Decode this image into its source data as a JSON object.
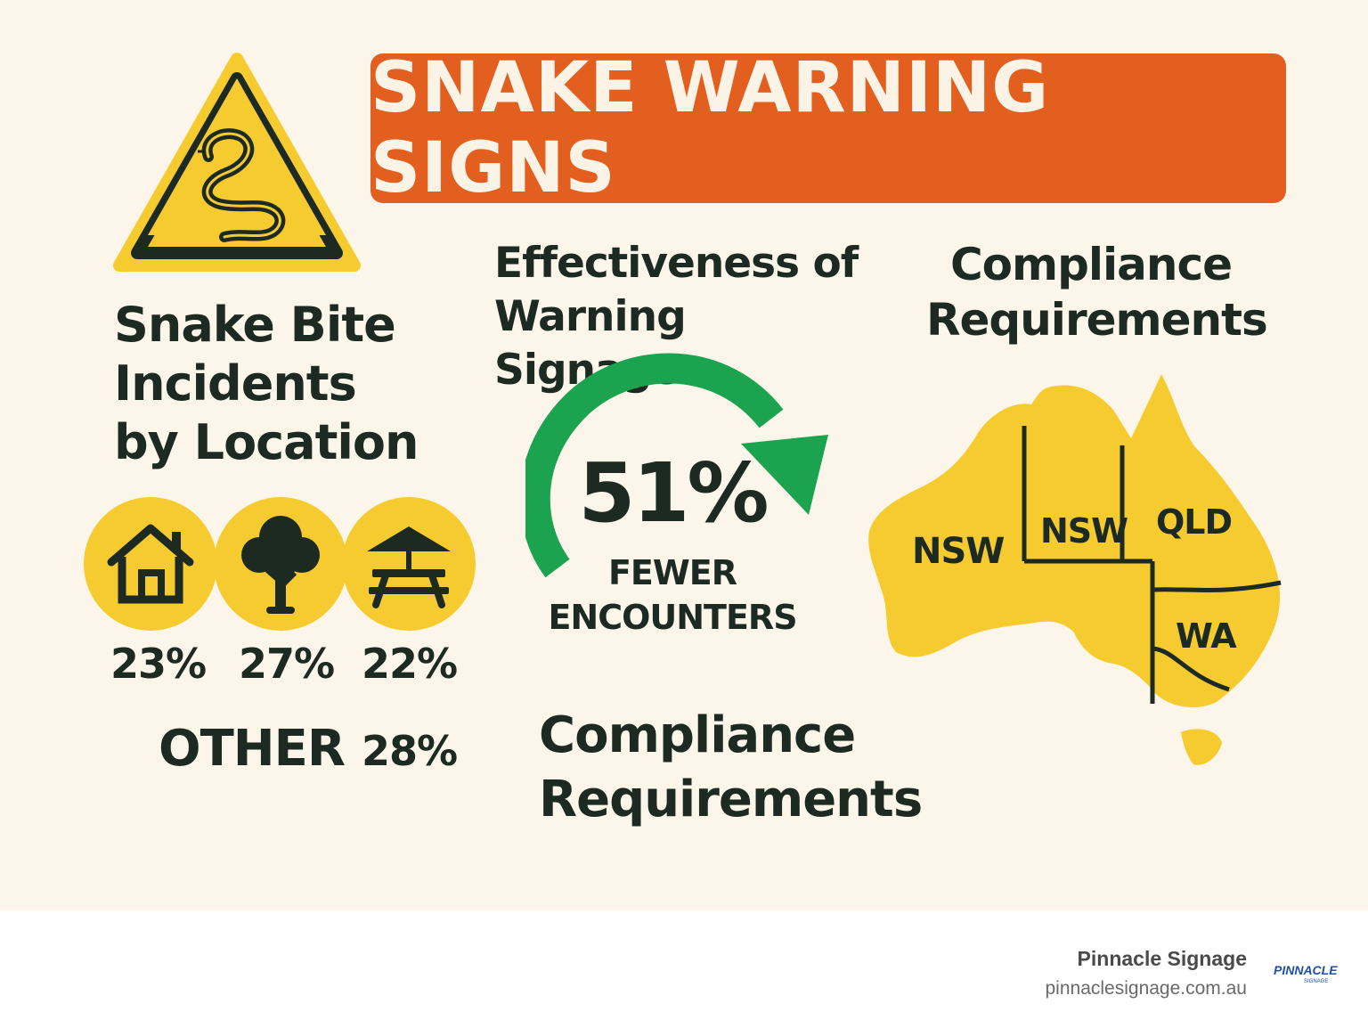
{
  "title": "SNAKE WARNING SIGNS",
  "left_section": {
    "heading": "Snake Bite Incidents by Location",
    "icons": [
      "house-icon",
      "tree-icon",
      "picnic-table-icon"
    ],
    "percentages": [
      "23%",
      "27%",
      "22%"
    ],
    "other_label": "OTHER",
    "other_value": "28%"
  },
  "middle_section": {
    "heading": "Effectiveness of Warning Signage",
    "stat_value": "51%",
    "stat_caption": "FEWER ENCOUNTERS",
    "bottom_heading": "Compliance Requirements"
  },
  "right_section": {
    "heading": "Compliance Requirements",
    "map_labels": [
      "NSW",
      "NSW",
      "QLD",
      "WA"
    ]
  },
  "footer": {
    "brand": "Pinnacle Signage",
    "url": "pinnaclesignage.com.au",
    "logo_text": "PINNACLE",
    "logo_subtext": "SIGNAGE"
  },
  "colors": {
    "background": "#fcf6ea",
    "banner": "#e35f1f",
    "yellow": "#f6cb2f",
    "green": "#1ca34f",
    "dark": "#1c2a22"
  }
}
